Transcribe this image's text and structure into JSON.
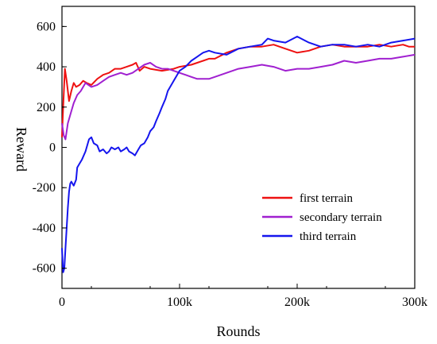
{
  "chart_data": {
    "type": "line",
    "xlabel": "Rounds",
    "ylabel": "Reward",
    "xlim": [
      0,
      300000
    ],
    "ylim": [
      -700,
      700
    ],
    "x_ticks": [
      0,
      100000,
      200000,
      300000
    ],
    "x_tick_labels": [
      "0",
      "100k",
      "200k",
      "300k"
    ],
    "y_ticks": [
      -600,
      -400,
      -200,
      0,
      200,
      400,
      600
    ],
    "y_tick_labels": [
      "-600",
      "-400",
      "-200",
      "0",
      "200",
      "400",
      "600"
    ],
    "grid": false,
    "legend_position": "bottom-right",
    "series": [
      {
        "name": "first terrain",
        "color": "#ee1111",
        "x": [
          0,
          1000,
          2500,
          4000,
          6000,
          8000,
          10000,
          12000,
          15000,
          18000,
          21000,
          25000,
          30000,
          35000,
          40000,
          45000,
          50000,
          55000,
          60000,
          63000,
          66000,
          68000,
          70000,
          75000,
          80000,
          85000,
          90000,
          95000,
          100000,
          105000,
          110000,
          115000,
          120000,
          125000,
          130000,
          140000,
          150000,
          160000,
          170000,
          180000,
          190000,
          200000,
          210000,
          220000,
          230000,
          240000,
          250000,
          260000,
          270000,
          280000,
          290000,
          295000,
          300000
        ],
        "y": [
          50,
          200,
          390,
          330,
          230,
          280,
          320,
          300,
          310,
          330,
          320,
          310,
          340,
          360,
          370,
          390,
          390,
          400,
          410,
          420,
          380,
          390,
          400,
          390,
          385,
          380,
          385,
          390,
          400,
          405,
          410,
          420,
          430,
          440,
          440,
          470,
          490,
          500,
          500,
          510,
          490,
          470,
          480,
          500,
          510,
          500,
          500,
          500,
          510,
          500,
          510,
          500,
          500
        ]
      },
      {
        "name": "secondary terrain",
        "color": "#a020d0",
        "x": [
          0,
          1500,
          3000,
          5000,
          8000,
          10000,
          13000,
          16000,
          20000,
          25000,
          30000,
          35000,
          40000,
          45000,
          50000,
          55000,
          60000,
          65000,
          70000,
          75000,
          80000,
          85000,
          90000,
          95000,
          100000,
          105000,
          110000,
          115000,
          120000,
          125000,
          130000,
          140000,
          150000,
          160000,
          170000,
          180000,
          190000,
          200000,
          210000,
          220000,
          230000,
          240000,
          250000,
          260000,
          270000,
          280000,
          290000,
          300000
        ],
        "y": [
          120,
          60,
          40,
          120,
          180,
          220,
          260,
          280,
          320,
          300,
          310,
          330,
          350,
          360,
          370,
          360,
          370,
          390,
          410,
          420,
          400,
          390,
          390,
          380,
          370,
          360,
          350,
          340,
          340,
          340,
          350,
          370,
          390,
          400,
          410,
          400,
          380,
          390,
          390,
          400,
          410,
          430,
          420,
          430,
          440,
          440,
          450,
          460
        ]
      },
      {
        "name": "third terrain",
        "color": "#1515ee",
        "x": [
          0,
          1000,
          2000,
          3000,
          4000,
          5000,
          6000,
          7000,
          8000,
          10000,
          12000,
          13000,
          15000,
          17000,
          20000,
          23000,
          25000,
          27000,
          30000,
          32000,
          35000,
          38000,
          40000,
          42000,
          45000,
          48000,
          50000,
          53000,
          55000,
          57000,
          60000,
          62000,
          65000,
          67000,
          70000,
          73000,
          75000,
          78000,
          80000,
          83000,
          85000,
          88000,
          90000,
          95000,
          100000,
          105000,
          110000,
          115000,
          120000,
          125000,
          130000,
          140000,
          150000,
          160000,
          170000,
          175000,
          180000,
          190000,
          200000,
          210000,
          220000,
          230000,
          240000,
          250000,
          260000,
          270000,
          280000,
          290000,
          300000
        ],
        "y": [
          -500,
          -620,
          -600,
          -500,
          -400,
          -300,
          -220,
          -180,
          -170,
          -190,
          -160,
          -100,
          -80,
          -60,
          -20,
          40,
          50,
          20,
          10,
          -20,
          -10,
          -30,
          -20,
          0,
          -10,
          0,
          -20,
          -10,
          0,
          -20,
          -30,
          -40,
          -10,
          10,
          20,
          50,
          80,
          100,
          130,
          170,
          200,
          240,
          280,
          330,
          380,
          400,
          430,
          450,
          470,
          480,
          470,
          460,
          490,
          500,
          510,
          540,
          530,
          520,
          550,
          520,
          500,
          510,
          510,
          500,
          510,
          500,
          520,
          530,
          540
        ]
      }
    ]
  }
}
